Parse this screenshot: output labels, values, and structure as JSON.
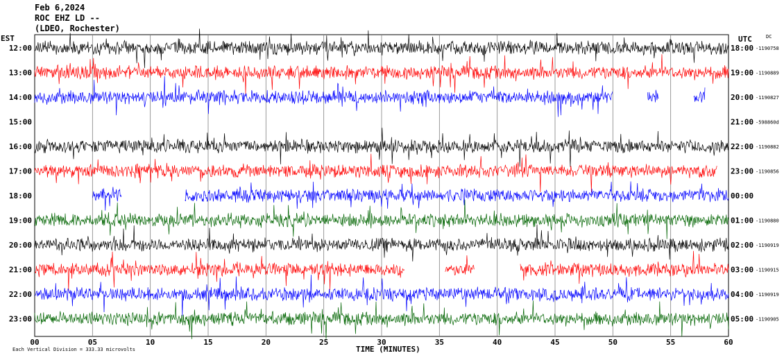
{
  "header": {
    "date": "Feb 6,2024",
    "station": "ROC EHZ LD --",
    "network": "(LDEO, Rochester)"
  },
  "left_axis_label": "EST",
  "right_axis_label": "UTC",
  "dc_label": "DC",
  "scale_note": "Each Vertical Division = 333.33 microvolts",
  "colors": {
    "black": "#000000",
    "red": "#ff0000",
    "blue": "#0000ff",
    "green": "#006400",
    "grid": "#808080"
  },
  "chart_data": {
    "type": "line",
    "title": "",
    "xlabel": "TIME (MINUTES)",
    "xlim": [
      0,
      60
    ],
    "x_ticks": [
      "00",
      "05",
      "10",
      "15",
      "20",
      "25",
      "30",
      "35",
      "40",
      "45",
      "50",
      "55",
      "60"
    ],
    "rows": [
      {
        "est": "12:00",
        "utc": "18:00",
        "dc": "-1190758",
        "color": "black",
        "segments": [
          [
            0,
            60
          ]
        ]
      },
      {
        "est": "13:00",
        "utc": "19:00",
        "dc": "-1190889",
        "color": "red",
        "segments": [
          [
            0,
            60
          ]
        ]
      },
      {
        "est": "14:00",
        "utc": "20:00",
        "dc": "-1190827",
        "color": "blue",
        "segments": [
          [
            0,
            50
          ],
          [
            53,
            54
          ],
          [
            57,
            58
          ]
        ]
      },
      {
        "est": "15:00",
        "utc": "21:00",
        "dc": "-598860d",
        "color": "black",
        "segments": []
      },
      {
        "est": "16:00",
        "utc": "22:00",
        "dc": "-1190882",
        "color": "black",
        "segments": [
          [
            0,
            60
          ]
        ]
      },
      {
        "est": "17:00",
        "utc": "23:00",
        "dc": "-1190856",
        "color": "red",
        "segments": [
          [
            0,
            59
          ]
        ]
      },
      {
        "est": "18:00",
        "utc": "00:00",
        "dc": "",
        "color": "blue",
        "segments": [
          [
            5,
            7.5
          ],
          [
            13,
            60
          ]
        ]
      },
      {
        "est": "19:00",
        "utc": "01:00",
        "dc": "-1190880",
        "color": "green",
        "segments": [
          [
            0,
            60
          ]
        ]
      },
      {
        "est": "20:00",
        "utc": "02:00",
        "dc": "-1190919",
        "color": "black",
        "segments": [
          [
            0,
            60
          ]
        ]
      },
      {
        "est": "21:00",
        "utc": "03:00",
        "dc": "-1190915",
        "color": "red",
        "segments": [
          [
            0,
            32
          ],
          [
            35.5,
            38
          ],
          [
            42,
            60
          ]
        ]
      },
      {
        "est": "22:00",
        "utc": "04:00",
        "dc": "-1190919",
        "color": "blue",
        "segments": [
          [
            0,
            60
          ]
        ]
      },
      {
        "est": "23:00",
        "utc": "05:00",
        "dc": "-1190905",
        "color": "green",
        "segments": [
          [
            0,
            60
          ]
        ]
      }
    ]
  }
}
